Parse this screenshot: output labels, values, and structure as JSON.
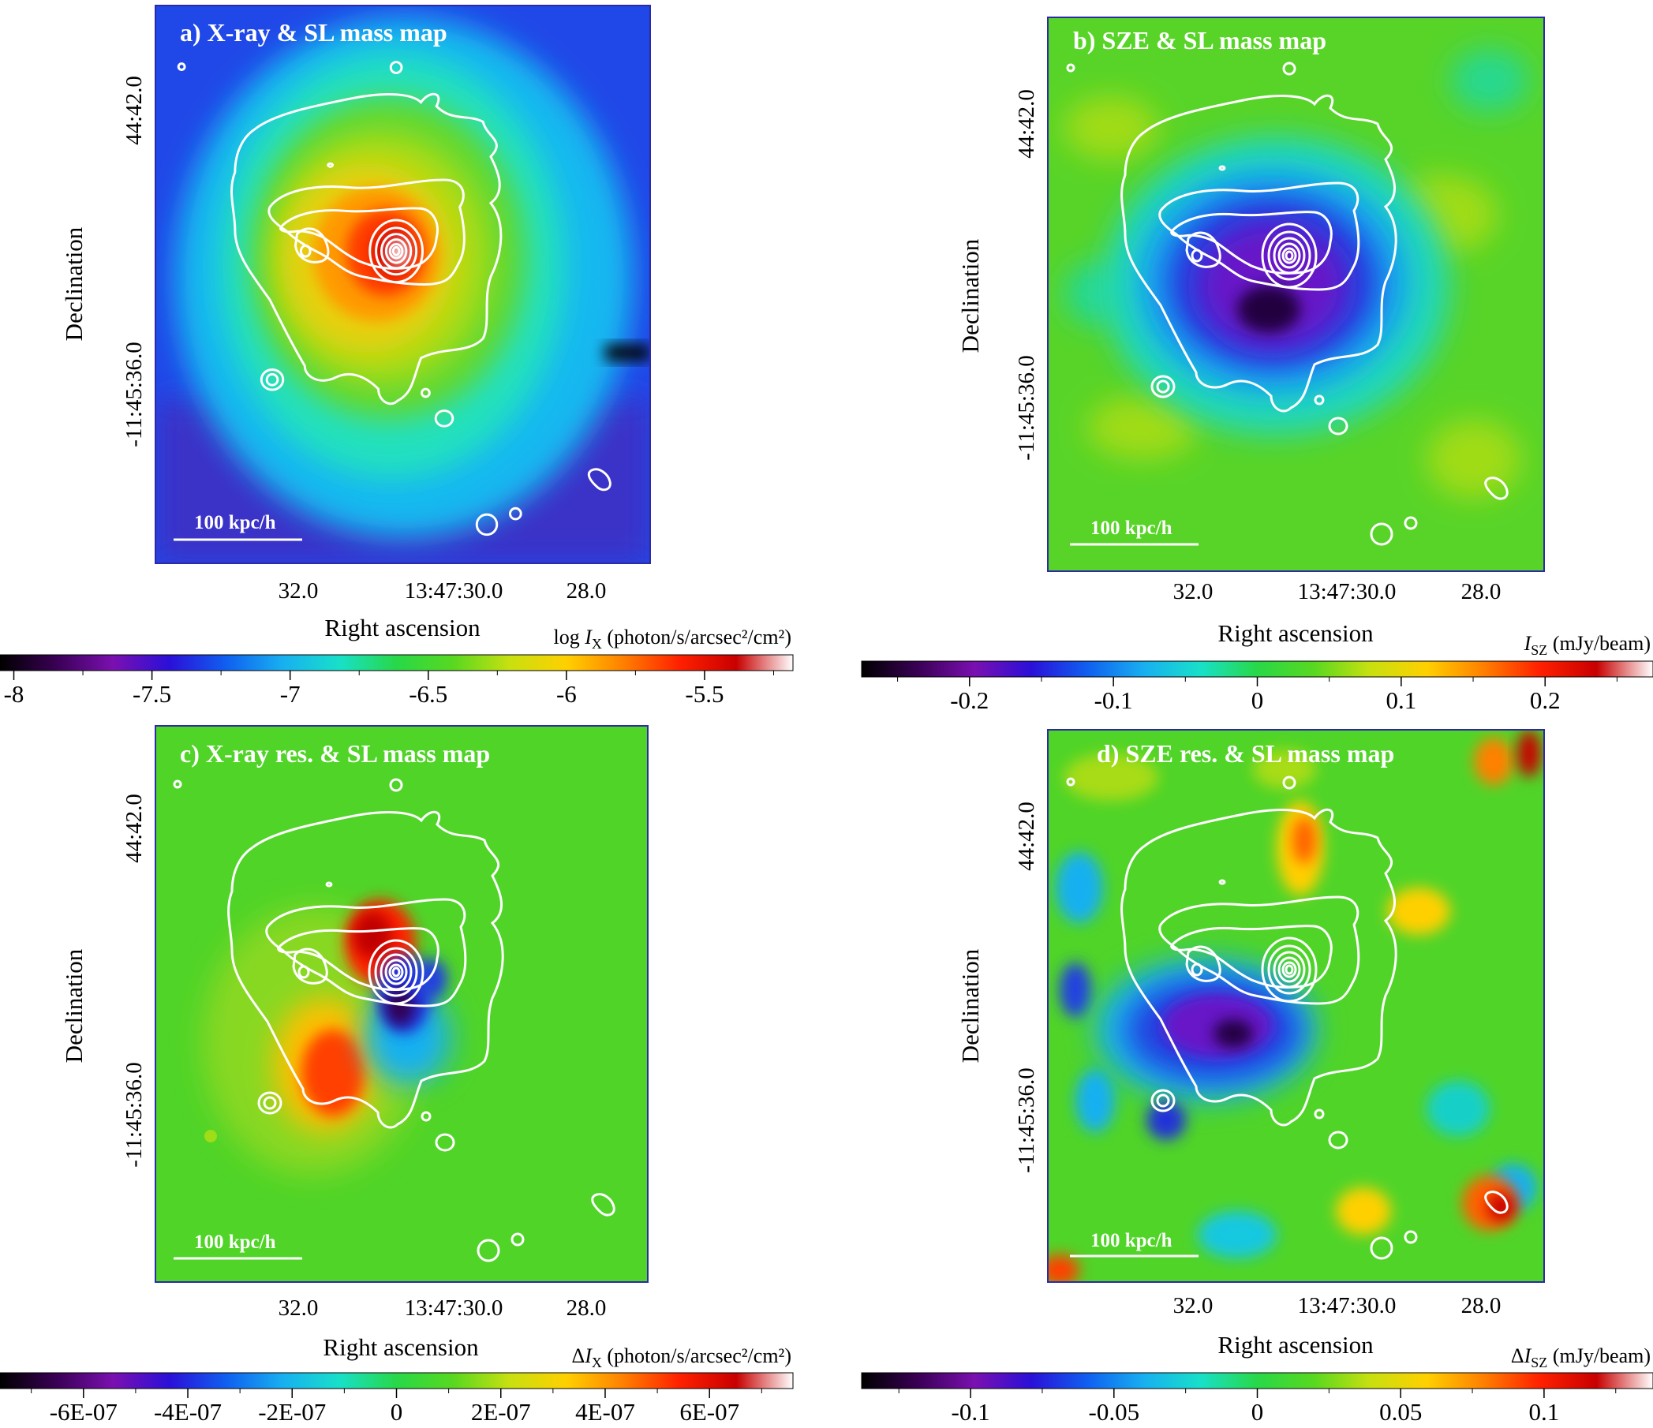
{
  "colors": {
    "map_stops": [
      "#000000",
      "#3a0055",
      "#7a10b0",
      "#2a10d8",
      "#1060f0",
      "#18b0f0",
      "#18e0c8",
      "#28d848",
      "#58d820",
      "#c8e010",
      "#ffd000",
      "#ff8000",
      "#ff2000",
      "#c80000",
      "#ffffff"
    ],
    "contour": "#ffffff",
    "frame": "#2b2ba8"
  },
  "chart_data": [
    {
      "type": "heatmap",
      "panel": "a",
      "title": "a) X-ray & SL mass map",
      "scale_bar": "100 kpc/h",
      "xlabel": "Right ascension",
      "ylabel": "Declination",
      "x_ticks": [
        "32.0",
        "13:47:30.0",
        "28.0"
      ],
      "y_ticks": [
        "44:42.0",
        "-11:45:36.0"
      ],
      "colorbar": {
        "label_prefix": "log ",
        "label_symbol": "I",
        "label_sub": "X",
        "label_unit": " (photon/s/arcsec²/cm²)",
        "ticks": [
          "-8",
          "-7.5",
          "-7",
          "-6.5",
          "-6",
          "-5.5"
        ],
        "tick_values": [
          -8,
          -7.5,
          -7,
          -6.5,
          -6,
          -5.5
        ],
        "range": [
          -8.05,
          -5.18
        ]
      }
    },
    {
      "type": "heatmap",
      "panel": "b",
      "title": "b) SZE & SL mass map",
      "scale_bar": "100 kpc/h",
      "xlabel": "Right ascension",
      "ylabel": "Declination",
      "x_ticks": [
        "32.0",
        "13:47:30.0",
        "28.0"
      ],
      "y_ticks": [
        "44:42.0",
        "-11:45:36.0"
      ],
      "colorbar": {
        "label_prefix": "",
        "label_symbol": "I",
        "label_sub": "SZ",
        "label_unit": " (mJy/beam)",
        "ticks": [
          "-0.2",
          "-0.1",
          "0",
          "0.1",
          "0.2"
        ],
        "tick_values": [
          -0.2,
          -0.1,
          0,
          0.1,
          0.2
        ],
        "range": [
          -0.275,
          0.275
        ]
      }
    },
    {
      "type": "heatmap",
      "panel": "c",
      "title": "c) X-ray res. & SL mass map",
      "scale_bar": "100 kpc/h",
      "xlabel": "Right ascension",
      "ylabel": "Declination",
      "x_ticks": [
        "32.0",
        "13:47:30.0",
        "28.0"
      ],
      "y_ticks": [
        "44:42.0",
        "-11:45:36.0"
      ],
      "colorbar": {
        "label_prefix": "Δ",
        "label_symbol": "I",
        "label_sub": "X",
        "label_unit": " (photon/s/arcsec²/cm²)",
        "ticks": [
          "-6E-07",
          "-4E-07",
          "-2E-07",
          "0",
          "2E-07",
          "4E-07",
          "6E-07"
        ],
        "tick_values": [
          -6e-07,
          -4e-07,
          -2e-07,
          0,
          2e-07,
          4e-07,
          6e-07
        ],
        "range": [
          -7.6e-07,
          7.6e-07
        ]
      }
    },
    {
      "type": "heatmap",
      "panel": "d",
      "title": "d) SZE res. & SL mass map",
      "scale_bar": "100 kpc/h",
      "xlabel": "Right ascension",
      "ylabel": "Declination",
      "x_ticks": [
        "32.0",
        "13:47:30.0",
        "28.0"
      ],
      "y_ticks": [
        "44:42.0",
        "-11:45:36.0"
      ],
      "colorbar": {
        "label_prefix": "Δ",
        "label_symbol": "I",
        "label_sub": "SZ",
        "label_unit": " (mJy/beam)",
        "ticks": [
          "-0.1",
          "-0.05",
          "0",
          "0.05",
          "0.1"
        ],
        "tick_values": [
          -0.1,
          -0.05,
          0,
          0.05,
          0.1
        ],
        "range": [
          -0.138,
          0.138
        ]
      }
    }
  ]
}
